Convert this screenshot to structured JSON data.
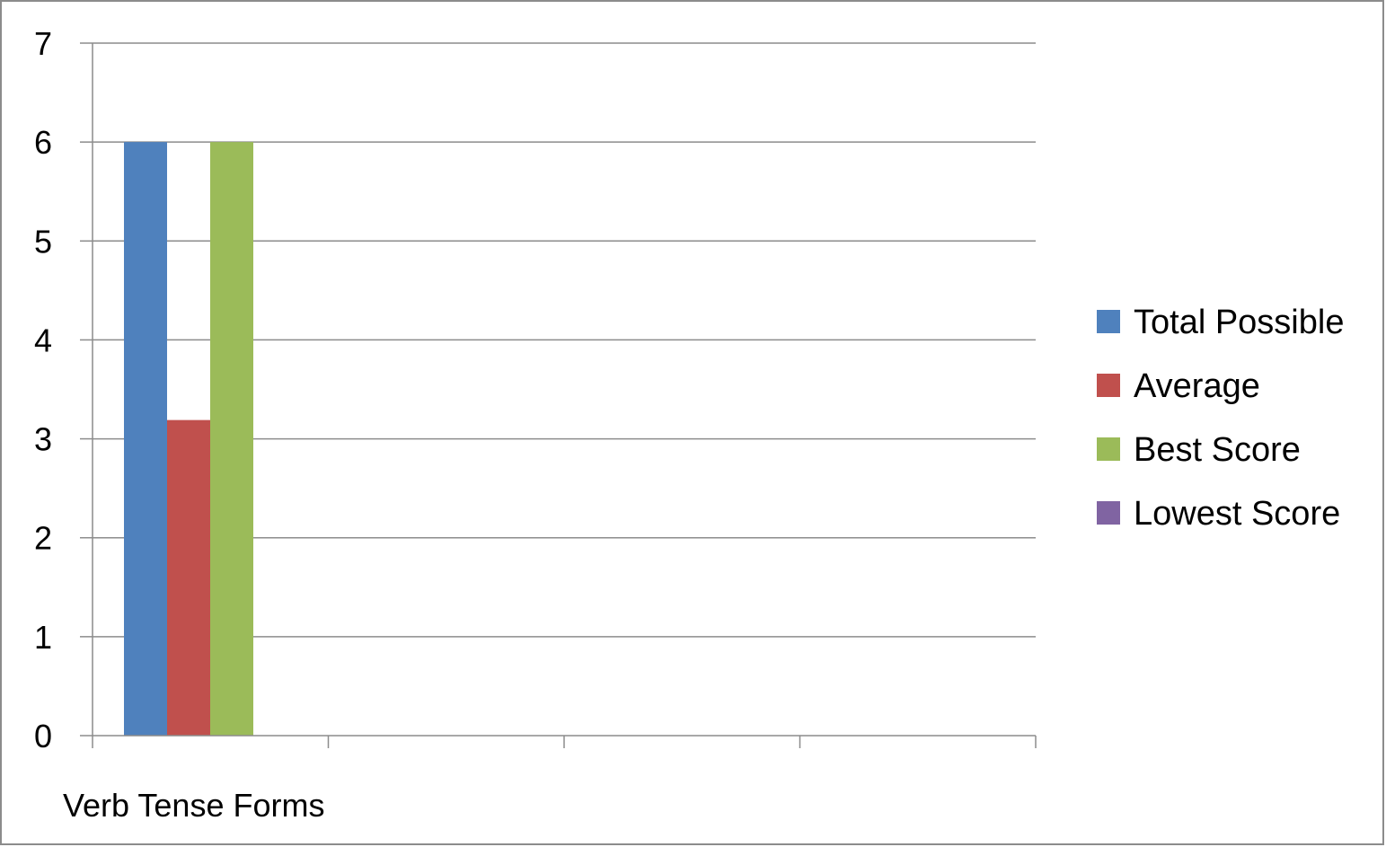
{
  "chart_data": {
    "type": "bar",
    "categories": [
      "Verb Tense Forms",
      "",
      "",
      ""
    ],
    "series": [
      {
        "name": "Total Possible",
        "color": "#4F81BD",
        "values": [
          6,
          null,
          null,
          null
        ]
      },
      {
        "name": "Average",
        "color": "#C0504D",
        "values": [
          3.19,
          null,
          null,
          null
        ]
      },
      {
        "name": "Best Score",
        "color": "#9BBB59",
        "values": [
          6,
          null,
          null,
          null
        ]
      },
      {
        "name": "Lowest Score",
        "color": "#8064A2",
        "values": [
          0,
          null,
          null,
          null
        ]
      }
    ],
    "title": "",
    "xlabel": "",
    "ylabel": "",
    "ylim": [
      0,
      7
    ],
    "yticks": [
      "0",
      "1",
      "2",
      "3",
      "4",
      "5",
      "6",
      "7"
    ],
    "grid": true,
    "legend_position": "right"
  }
}
